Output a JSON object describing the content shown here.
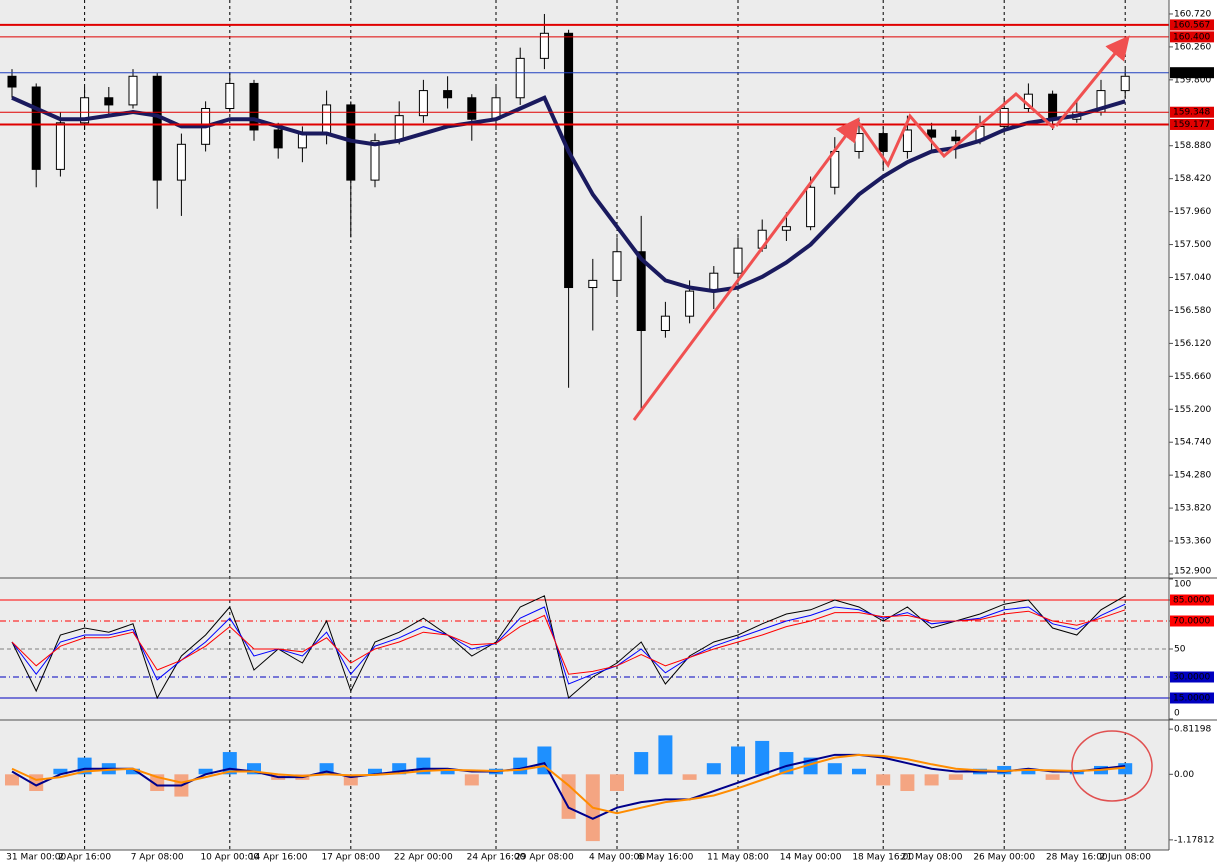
{
  "chart_data": [
    {
      "type": "candlestick",
      "categories": [
        null,
        "31 Mar 00:00",
        null,
        "2 Apr 16:00",
        null,
        null,
        "7 Apr 08:00",
        null,
        null,
        "10 Apr 00:00",
        null,
        "14 Apr 16:00",
        null,
        null,
        "17 Apr 08:00",
        null,
        null,
        "22 Apr 00:00",
        null,
        null,
        "24 Apr 16:00",
        null,
        "29 Apr 08:00",
        null,
        null,
        "4 May 00:00",
        null,
        "6 May 16:00",
        null,
        null,
        "11 May 08:00",
        null,
        null,
        "14 May 00:00",
        null,
        null,
        "18 May 16:00",
        null,
        "21 May 08:00",
        null,
        null,
        "26 May 00:00",
        null,
        null,
        "28 May 16:00",
        null,
        "2 Jun 08:00"
      ],
      "open": [
        159.85,
        159.7,
        158.55,
        159.2,
        159.55,
        159.45,
        159.85,
        158.4,
        158.9,
        159.4,
        159.75,
        159.1,
        158.85,
        159.05,
        159.45,
        158.4,
        158.95,
        159.3,
        159.65,
        159.55,
        159.25,
        159.55,
        160.1,
        160.45,
        156.9,
        157.0,
        157.4,
        156.3,
        156.5,
        156.85,
        157.1,
        157.45,
        157.7,
        157.75,
        158.3,
        158.8,
        159.05,
        158.8,
        159.1,
        159.0,
        158.95,
        159.15,
        159.4,
        159.6,
        159.25,
        159.35,
        159.65
      ],
      "high": [
        159.95,
        159.75,
        159.35,
        159.7,
        159.7,
        159.95,
        159.9,
        159.05,
        159.5,
        159.9,
        159.8,
        159.2,
        159.15,
        159.65,
        159.5,
        159.05,
        159.5,
        159.8,
        159.85,
        159.6,
        159.7,
        160.25,
        160.72,
        160.5,
        157.3,
        157.6,
        157.9,
        156.7,
        157.0,
        157.2,
        157.6,
        157.85,
        157.95,
        158.45,
        159.0,
        159.25,
        159.15,
        159.3,
        159.2,
        159.1,
        159.3,
        159.55,
        159.75,
        159.65,
        159.5,
        159.8,
        159.95
      ],
      "low": [
        159.55,
        158.3,
        158.45,
        159.1,
        159.3,
        159.4,
        158.0,
        157.9,
        158.8,
        159.35,
        158.95,
        158.7,
        158.65,
        158.9,
        157.6,
        158.3,
        158.9,
        159.2,
        159.4,
        158.95,
        159.1,
        159.45,
        159.95,
        155.5,
        156.3,
        156.8,
        155.2,
        156.2,
        156.4,
        156.6,
        157.0,
        157.4,
        157.55,
        157.7,
        158.2,
        158.7,
        158.55,
        158.7,
        158.8,
        158.7,
        158.9,
        159.1,
        159.35,
        159.1,
        159.2,
        159.3,
        159.55
      ],
      "close": [
        159.7,
        158.55,
        159.2,
        159.55,
        159.45,
        159.85,
        158.4,
        158.9,
        159.4,
        159.75,
        159.1,
        158.85,
        159.05,
        159.45,
        158.4,
        158.95,
        159.3,
        159.65,
        159.55,
        159.25,
        159.55,
        160.1,
        160.45,
        156.9,
        157.0,
        157.4,
        156.3,
        156.5,
        156.85,
        157.1,
        157.45,
        157.7,
        157.75,
        158.3,
        158.8,
        159.05,
        158.8,
        159.1,
        159.0,
        158.95,
        159.15,
        159.4,
        159.6,
        159.25,
        159.35,
        159.65,
        159.85
      ],
      "up_color": "#ffffff",
      "down_color": "#000000",
      "wick_color": "#000000",
      "ma": {
        "color": "#1a1a5e",
        "values": [
          159.55,
          159.4,
          159.25,
          159.25,
          159.3,
          159.35,
          159.3,
          159.15,
          159.15,
          159.25,
          159.25,
          159.15,
          159.05,
          159.05,
          158.95,
          158.9,
          158.95,
          159.05,
          159.15,
          159.2,
          159.25,
          159.4,
          159.55,
          158.8,
          158.2,
          157.75,
          157.3,
          157.0,
          156.9,
          156.85,
          156.9,
          157.05,
          157.25,
          157.5,
          157.85,
          158.2,
          158.45,
          158.65,
          158.8,
          158.85,
          158.95,
          159.1,
          159.2,
          159.25,
          159.3,
          159.4,
          159.5
        ]
      },
      "ylim": [
        152.858,
        160.915
      ],
      "yticks": [
        {
          "value": 160.72,
          "label": "160.720"
        },
        {
          "value": 160.26,
          "label": "160.260"
        },
        {
          "value": 159.8,
          "label": "159.800"
        },
        {
          "value": 158.88,
          "label": "158.880"
        },
        {
          "value": 158.42,
          "label": "158.420"
        },
        {
          "value": 157.96,
          "label": "157.960"
        },
        {
          "value": 157.5,
          "label": "157.500"
        },
        {
          "value": 157.04,
          "label": "157.040"
        },
        {
          "value": 156.58,
          "label": "156.580"
        },
        {
          "value": 156.12,
          "label": "156.120"
        },
        {
          "value": 155.66,
          "label": "155.660"
        },
        {
          "value": 155.2,
          "label": "155.200"
        },
        {
          "value": 154.74,
          "label": "154.740"
        },
        {
          "value": 154.28,
          "label": "154.280"
        },
        {
          "value": 153.82,
          "label": "153.820"
        },
        {
          "value": 153.36,
          "label": "153.360"
        },
        {
          "value": 152.9,
          "label": "152.900"
        }
      ],
      "price_lines": [
        {
          "value": 160.567,
          "label": "160.567",
          "color": "#e00000",
          "width": 2
        },
        {
          "value": 160.4,
          "label": "160.400",
          "color": "#e00000",
          "width": 1
        },
        {
          "value": 159.9,
          "label": "159.900",
          "color": "#2040c0",
          "width": 1,
          "box": "#000000"
        },
        {
          "value": 159.348,
          "label": "159.348",
          "color": "#e00000",
          "width": 1
        },
        {
          "value": 159.177,
          "label": "159.177",
          "color": "#e00000",
          "width": 2
        }
      ]
    },
    {
      "type": "line",
      "series": [
        {
          "color": "#000000",
          "values": [
            55,
            20,
            60,
            65,
            62,
            68,
            15,
            45,
            60,
            80,
            35,
            50,
            40,
            70,
            20,
            55,
            62,
            72,
            60,
            45,
            55,
            80,
            88,
            15,
            30,
            40,
            55,
            25,
            45,
            55,
            60,
            68,
            75,
            78,
            85,
            80,
            70,
            80,
            65,
            70,
            75,
            82,
            85,
            65,
            60,
            78,
            88
          ]
        },
        {
          "color": "#0000ff",
          "values": [
            55,
            32,
            55,
            60,
            60,
            64,
            28,
            42,
            55,
            72,
            45,
            50,
            45,
            62,
            32,
            52,
            58,
            66,
            60,
            50,
            54,
            72,
            80,
            25,
            32,
            38,
            50,
            33,
            44,
            52,
            58,
            64,
            70,
            74,
            80,
            78,
            72,
            76,
            68,
            70,
            72,
            78,
            80,
            68,
            64,
            74,
            82
          ]
        },
        {
          "color": "#ff0000",
          "values": [
            55,
            38,
            52,
            58,
            58,
            62,
            35,
            42,
            52,
            66,
            50,
            50,
            48,
            58,
            40,
            50,
            55,
            62,
            60,
            53,
            54,
            66,
            74,
            32,
            34,
            38,
            46,
            38,
            44,
            50,
            55,
            60,
            66,
            70,
            76,
            76,
            73,
            74,
            70,
            70,
            71,
            75,
            77,
            70,
            67,
            72,
            78
          ]
        }
      ],
      "ylim": [
        0,
        100
      ],
      "yticks": [
        100,
        {
          "value": 85,
          "label": "85.0000",
          "color": "#ff0000",
          "style": "solid"
        },
        {
          "value": 70,
          "label": "70.0000",
          "color": "#ff0000",
          "style": "dashdot"
        },
        {
          "value": 50,
          "label": "50",
          "color": "#808080",
          "style": "dashed"
        },
        {
          "value": 30,
          "label": "30.0000",
          "color": "#0000c0",
          "style": "dashdot"
        },
        {
          "value": 15,
          "label": "15.0000",
          "color": "#0000c0",
          "style": "solid"
        },
        0
      ]
    },
    {
      "type": "macd",
      "hist": {
        "color_up": "#1e90ff",
        "color_down": "#f4a582",
        "values": [
          -0.2,
          -0.3,
          0.1,
          0.3,
          0.2,
          0.1,
          -0.3,
          -0.4,
          0.1,
          0.4,
          0.2,
          -0.1,
          -0.1,
          0.2,
          -0.2,
          0.1,
          0.2,
          0.3,
          0.1,
          -0.2,
          0.1,
          0.3,
          0.5,
          -0.8,
          -1.2,
          -0.3,
          0.4,
          0.7,
          -0.1,
          0.2,
          0.5,
          0.6,
          0.4,
          0.3,
          0.2,
          0.1,
          -0.2,
          -0.3,
          -0.2,
          -0.1,
          0.1,
          0.15,
          0.1,
          -0.1,
          0.05,
          0.15,
          0.2
        ]
      },
      "series": [
        {
          "color": "#00008b",
          "values": [
            0.05,
            -0.2,
            0.0,
            0.1,
            0.1,
            0.1,
            -0.2,
            -0.2,
            0.0,
            0.1,
            0.05,
            -0.05,
            -0.05,
            0.05,
            -0.05,
            0.0,
            0.05,
            0.1,
            0.1,
            0.05,
            0.05,
            0.1,
            0.2,
            -0.6,
            -0.8,
            -0.6,
            -0.5,
            -0.45,
            -0.45,
            -0.3,
            -0.15,
            0.0,
            0.15,
            0.25,
            0.35,
            0.35,
            0.3,
            0.2,
            0.1,
            0.05,
            0.05,
            0.05,
            0.1,
            0.05,
            0.05,
            0.1,
            0.15
          ]
        },
        {
          "color": "#ff8c00",
          "values": [
            0.1,
            -0.1,
            -0.05,
            0.05,
            0.08,
            0.1,
            -0.05,
            -0.15,
            -0.05,
            0.05,
            0.05,
            0.0,
            -0.03,
            0.0,
            -0.02,
            -0.01,
            0.02,
            0.06,
            0.08,
            0.07,
            0.06,
            0.08,
            0.15,
            -0.2,
            -0.6,
            -0.7,
            -0.6,
            -0.5,
            -0.45,
            -0.38,
            -0.25,
            -0.1,
            0.05,
            0.18,
            0.3,
            0.35,
            0.33,
            0.27,
            0.18,
            0.1,
            0.07,
            0.06,
            0.08,
            0.07,
            0.06,
            0.08,
            0.12
          ]
        }
      ],
      "ylim": [
        -1.36,
        0.94
      ],
      "yticks": [
        0.81198,
        {
          "value": 0,
          "label": "0.00"
        },
        -1.17812
      ]
    }
  ]
}
